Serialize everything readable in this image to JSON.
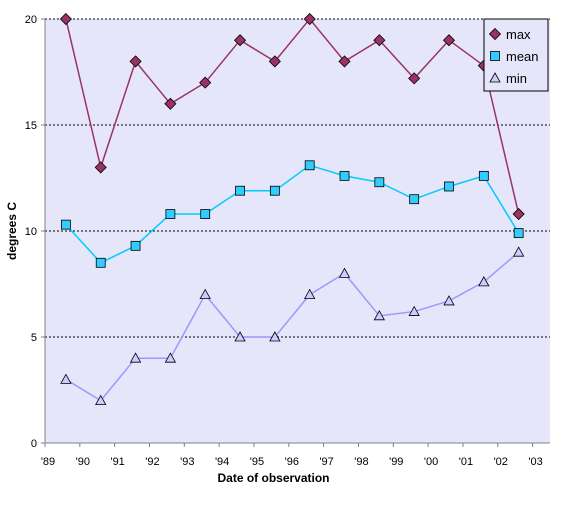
{
  "chart_data": {
    "type": "line",
    "title": "",
    "xlabel": "Date of observation",
    "ylabel": "degrees C",
    "xlim": [
      1989,
      2003.5
    ],
    "ylim": [
      0,
      20
    ],
    "x_tick_values": [
      1989,
      1990,
      1991,
      1992,
      1993,
      1994,
      1995,
      1996,
      1997,
      1998,
      1999,
      2000,
      2001,
      2002,
      2003
    ],
    "x_tick_labels": [
      "'89",
      "'90",
      "'91",
      "'92",
      "'93",
      "'94",
      "'95",
      "'96",
      "'97",
      "'98",
      "'99",
      "'00",
      "'01",
      "'02",
      "'03"
    ],
    "y_ticks": [
      0,
      5,
      10,
      15,
      20
    ],
    "y_tick_labels": [
      "0",
      "5",
      "10",
      "15",
      "20"
    ],
    "grid": "horizontal dotted",
    "legend_position": "top-right",
    "background_color": "#e6e6fa",
    "series": [
      {
        "name": "max",
        "line_color": "#993366",
        "marker": "diamond",
        "marker_color": "#993366",
        "x": [
          1989.6,
          1990.6,
          1991.6,
          1992.6,
          1993.6,
          1994.6,
          1995.6,
          1996.6,
          1997.6,
          1998.6,
          1999.6,
          2000.6,
          2001.6,
          2002.6
        ],
        "values": [
          20,
          13,
          18,
          16,
          17,
          19,
          18,
          20,
          18,
          19,
          17.2,
          19,
          17.8,
          10.8
        ]
      },
      {
        "name": "mean",
        "line_color": "#00ccff",
        "marker": "square",
        "marker_color": "#33ccff",
        "x": [
          1989.6,
          1990.6,
          1991.6,
          1992.6,
          1993.6,
          1994.6,
          1995.6,
          1996.6,
          1997.6,
          1998.6,
          1999.6,
          2000.6,
          2001.6,
          2002.6
        ],
        "values": [
          10.3,
          8.5,
          9.3,
          10.8,
          10.8,
          11.9,
          11.9,
          13.1,
          12.6,
          12.3,
          11.5,
          12.1,
          12.6,
          9.9
        ]
      },
      {
        "name": "min",
        "line_color": "#9999ff",
        "marker": "triangle",
        "marker_color": "#ccccff",
        "x": [
          1989.6,
          1990.6,
          1991.6,
          1992.6,
          1993.6,
          1994.6,
          1995.6,
          1996.6,
          1997.6,
          1998.6,
          1999.6,
          2000.6,
          2001.6,
          2002.6
        ],
        "values": [
          3,
          2,
          4,
          4,
          7,
          5,
          5,
          7,
          8,
          6,
          6.2,
          6.7,
          7.6,
          9
        ]
      }
    ]
  }
}
